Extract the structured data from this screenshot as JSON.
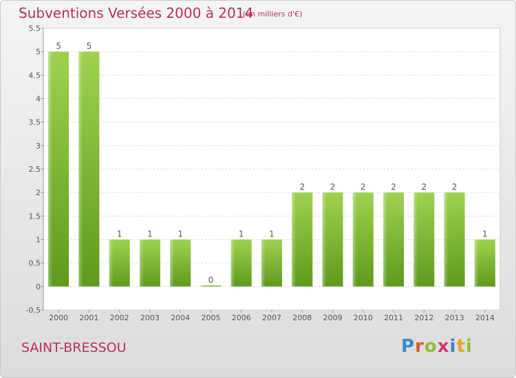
{
  "title": "Subventions Versées 2000 à 2014",
  "unit_note": "(en milliers d'€)",
  "commune": "SAINT-BRESSOU",
  "logo": {
    "text": "Proxiti",
    "letters": [
      "P",
      "r",
      "o",
      "x",
      "i",
      "t",
      "i"
    ]
  },
  "colors": {
    "title": "#b5305d",
    "bar_light": "#9fd14f",
    "bar_dark": "#5f9a1c",
    "grid": "#cccccc"
  },
  "chart_data": {
    "type": "bar",
    "categories": [
      "2000",
      "2001",
      "2002",
      "2003",
      "2004",
      "2005",
      "2006",
      "2007",
      "2008",
      "2009",
      "2010",
      "2011",
      "2012",
      "2013",
      "2014"
    ],
    "values": [
      5,
      5,
      1,
      1,
      1,
      0,
      1,
      1,
      2,
      2,
      2,
      2,
      2,
      2,
      1
    ],
    "data_labels": [
      "5",
      "5",
      "1",
      "1",
      "1",
      "0",
      "1",
      "1",
      "2",
      "2",
      "2",
      "2",
      "2",
      "2",
      "1"
    ],
    "yticks": [
      "-0.5",
      "0",
      "0.5",
      "1",
      "1.5",
      "2",
      "2.5",
      "3",
      "3.5",
      "4",
      "4.5",
      "5",
      "5.5"
    ],
    "ytick_values": [
      -0.5,
      0,
      0.5,
      1,
      1.5,
      2,
      2.5,
      3,
      3.5,
      4,
      4.5,
      5,
      5.5
    ],
    "ylim": [
      -0.5,
      5.5
    ],
    "grid": "horizontal dashed",
    "legend": "none"
  }
}
